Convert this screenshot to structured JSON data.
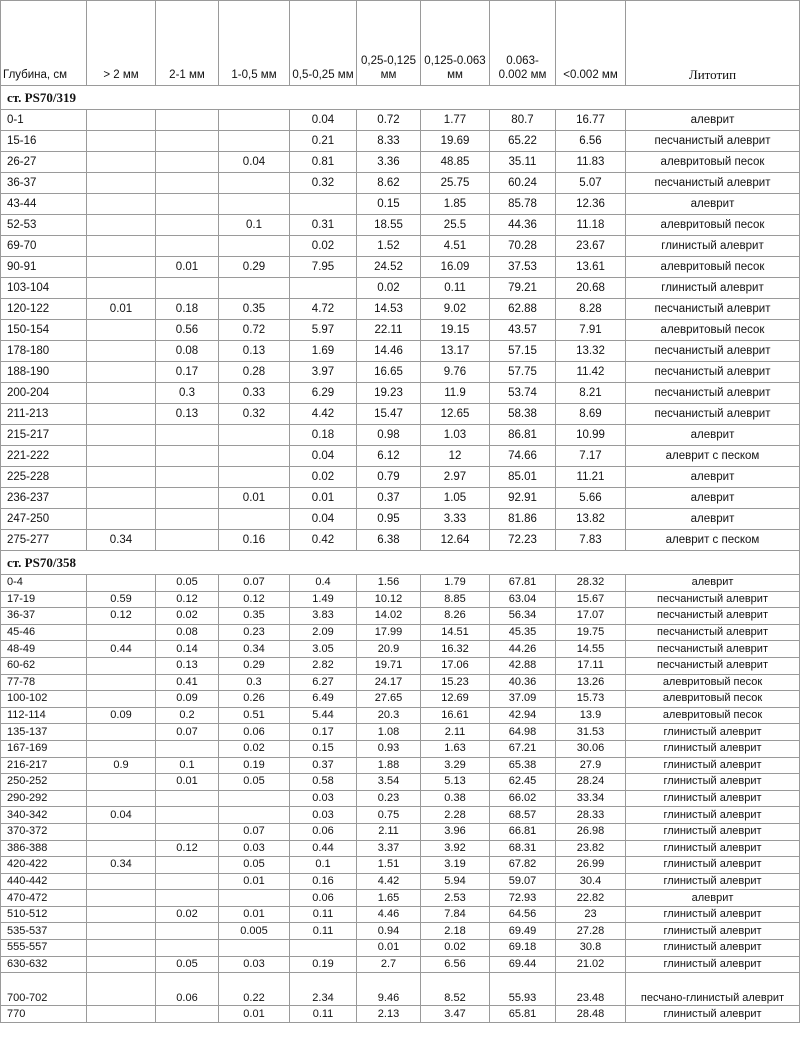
{
  "headers": [
    "Глубина, см",
    "> 2 мм",
    "2-1 мм",
    "1-0,5 мм",
    "0,5-0,25 мм",
    "0,25-0,125 мм",
    "0,125-0.063 мм",
    "0.063-0.002 мм",
    "<0.002 мм",
    "Литотип"
  ],
  "sections": [
    {
      "title": "ст. PS70/319",
      "rows": [
        [
          "0-1",
          "",
          "",
          "",
          "0.04",
          "0.72",
          "1.77",
          "80.7",
          "16.77",
          "алеврит"
        ],
        [
          "15-16",
          "",
          "",
          "",
          "0.21",
          "8.33",
          "19.69",
          "65.22",
          "6.56",
          "песчанистый алеврит"
        ],
        [
          "26-27",
          "",
          "",
          "0.04",
          "0.81",
          "3.36",
          "48.85",
          "35.11",
          "11.83",
          "алевритовый песок"
        ],
        [
          "36-37",
          "",
          "",
          "",
          "0.32",
          "8.62",
          "25.75",
          "60.24",
          "5.07",
          "песчанистый алеврит"
        ],
        [
          "43-44",
          "",
          "",
          "",
          "",
          "0.15",
          "1.85",
          "85.78",
          "12.36",
          "алеврит"
        ],
        [
          "52-53",
          "",
          "",
          "0.1",
          "0.31",
          "18.55",
          "25.5",
          "44.36",
          "11.18",
          "алевритовый песок"
        ],
        [
          "69-70",
          "",
          "",
          "",
          "0.02",
          "1.52",
          "4.51",
          "70.28",
          "23.67",
          "глинистый алеврит"
        ],
        [
          "90-91",
          "",
          "0.01",
          "0.29",
          "7.95",
          "24.52",
          "16.09",
          "37.53",
          "13.61",
          "алевритовый песок"
        ],
        [
          "103-104",
          "",
          "",
          "",
          "0.02",
          "0.11",
          "79.21",
          "20.68",
          "",
          "глинистый алеврит"
        ],
        [
          "120-122",
          "0.01",
          "0.18",
          "0.35",
          "4.72",
          "14.53",
          "9.02",
          "62.88",
          "8.28",
          "песчанистый алеврит"
        ],
        [
          "150-154",
          "",
          "0.56",
          "0.72",
          "5.97",
          "22.11",
          "19.15",
          "43.57",
          "7.91",
          "алевритовый песок"
        ],
        [
          "178-180",
          "",
          "0.08",
          "0.13",
          "1.69",
          "14.46",
          "13.17",
          "57.15",
          "13.32",
          "песчанистый алеврит"
        ],
        [
          "188-190",
          "",
          "0.17",
          "0.28",
          "3.97",
          "16.65",
          "9.76",
          "57.75",
          "11.42",
          "песчанистый алеврит"
        ],
        [
          "200-204",
          "",
          "0.3",
          "0.33",
          "6.29",
          "19.23",
          "11.9",
          "53.74",
          "8.21",
          "песчанистый алеврит"
        ],
        [
          "211-213",
          "",
          "0.13",
          "0.32",
          "4.42",
          "15.47",
          "12.65",
          "58.38",
          "8.69",
          "песчанистый алеврит"
        ],
        [
          "215-217",
          "",
          "",
          "",
          "0.18",
          "0.98",
          "1.03",
          "86.81",
          "10.99",
          "алеврит"
        ],
        [
          "221-222",
          "",
          "",
          "",
          "0.04",
          "6.12",
          "12",
          "74.66",
          "7.17",
          "алеврит с песком"
        ],
        [
          "225-228",
          "",
          "",
          "",
          "0.02",
          "0.79",
          "2.97",
          "85.01",
          "11.21",
          "алеврит"
        ],
        [
          "236-237",
          "",
          "",
          "0.01",
          "0.01",
          "0.37",
          "1.05",
          "92.91",
          "5.66",
          "алеврит"
        ],
        [
          "247-250",
          "",
          "",
          "",
          "0.04",
          "0.95",
          "3.33",
          "81.86",
          "13.82",
          "алеврит"
        ],
        [
          "275-277",
          "0.34",
          "",
          "0.16",
          "0.42",
          "6.38",
          "12.64",
          "72.23",
          "7.83",
          "алеврит с песком"
        ]
      ]
    },
    {
      "title": "ст. PS70/358",
      "rows": [
        [
          "0-4",
          "",
          "0.05",
          "0.07",
          "0.4",
          "1.56",
          "1.79",
          "67.81",
          "28.32",
          "алеврит"
        ],
        [
          "17-19",
          "0.59",
          "0.12",
          "0.12",
          "1.49",
          "10.12",
          "8.85",
          "63.04",
          "15.67",
          "песчанистый алеврит"
        ],
        [
          "36-37",
          "0.12",
          "0.02",
          "0.35",
          "3.83",
          "14.02",
          "8.26",
          "56.34",
          "17.07",
          "песчанистый алеврит"
        ],
        [
          "45-46",
          "",
          "0.08",
          "0.23",
          "2.09",
          "17.99",
          "14.51",
          "45.35",
          "19.75",
          "песчанистый алеврит"
        ],
        [
          "48-49",
          "0.44",
          "0.14",
          "0.34",
          "3.05",
          "20.9",
          "16.32",
          "44.26",
          "14.55",
          "песчанистый алеврит"
        ],
        [
          "60-62",
          "",
          "0.13",
          "0.29",
          "2.82",
          "19.71",
          "17.06",
          "42.88",
          "17.11",
          "песчанистый алеврит"
        ],
        [
          "77-78",
          "",
          "0.41",
          "0.3",
          "6.27",
          "24.17",
          "15.23",
          "40.36",
          "13.26",
          "алевритовый песок"
        ],
        [
          "100-102",
          "",
          "0.09",
          "0.26",
          "6.49",
          "27.65",
          "12.69",
          "37.09",
          "15.73",
          "алевритовый песок"
        ],
        [
          "112-114",
          "0.09",
          "0.2",
          "0.51",
          "5.44",
          "20.3",
          "16.61",
          "42.94",
          "13.9",
          "алевритовый песок"
        ],
        [
          "135-137",
          "",
          "0.07",
          "0.06",
          "0.17",
          "1.08",
          "2.11",
          "64.98",
          "31.53",
          "глинистый алеврит"
        ],
        [
          "167-169",
          "",
          "",
          "0.02",
          "0.15",
          "0.93",
          "1.63",
          "67.21",
          "30.06",
          "глинистый алеврит"
        ],
        [
          "216-217",
          "0.9",
          "0.1",
          "0.19",
          "0.37",
          "1.88",
          "3.29",
          "65.38",
          "27.9",
          "глинистый алеврит"
        ],
        [
          "250-252",
          "",
          "0.01",
          "0.05",
          "0.58",
          "3.54",
          "5.13",
          "62.45",
          "28.24",
          "глинистый алеврит"
        ],
        [
          "290-292",
          "",
          "",
          "",
          "0.03",
          "0.23",
          "0.38",
          "66.02",
          "33.34",
          "глинистый алеврит"
        ],
        [
          "340-342",
          "0.04",
          "",
          "",
          "0.03",
          "0.75",
          "2.28",
          "68.57",
          "28.33",
          "глинистый алеврит"
        ],
        [
          "370-372",
          "",
          "",
          "0.07",
          "0.06",
          "2.11",
          "3.96",
          "66.81",
          "26.98",
          "глинистый алеврит"
        ],
        [
          "386-388",
          "",
          "0.12",
          "0.03",
          "0.44",
          "3.37",
          "3.92",
          "68.31",
          "23.82",
          "глинистый алеврит"
        ],
        [
          "420-422",
          "0.34",
          "",
          "0.05",
          "0.1",
          "1.51",
          "3.19",
          "67.82",
          "26.99",
          "глинистый алеврит"
        ],
        [
          "440-442",
          "",
          "",
          "0.01",
          "0.16",
          "4.42",
          "5.94",
          "59.07",
          "30.4",
          "глинистый алеврит"
        ],
        [
          "470-472",
          "",
          "",
          "",
          "0.06",
          "1.65",
          "2.53",
          "72.93",
          "22.82",
          "алеврит"
        ],
        [
          "510-512",
          "",
          "0.02",
          "0.01",
          "0.11",
          "4.46",
          "7.84",
          "64.56",
          "23",
          "глинистый алеврит"
        ],
        [
          "535-537",
          "",
          "",
          "0.005",
          "0.11",
          "0.94",
          "2.18",
          "69.49",
          "27.28",
          "глинистый алеврит"
        ],
        [
          "555-557",
          "",
          "",
          "",
          "",
          "0.01",
          "0.02",
          "69.18",
          "30.8",
          "глинистый алеврит"
        ],
        [
          "630-632",
          "",
          "0.05",
          "0.03",
          "0.19",
          "2.7",
          "6.56",
          "69.44",
          "21.02",
          "глинистый алеврит"
        ],
        [
          "700-702",
          "",
          "0.06",
          "0.22",
          "2.34",
          "9.46",
          "8.52",
          "55.93",
          "23.48",
          "песчано-глинистый алеврит"
        ],
        [
          "770",
          "",
          "",
          "0.01",
          "0.11",
          "2.13",
          "3.47",
          "65.81",
          "28.48",
          "глинистый алеврит"
        ]
      ]
    }
  ]
}
